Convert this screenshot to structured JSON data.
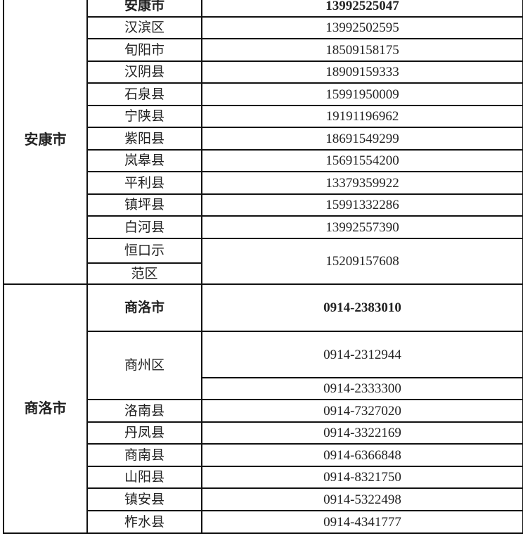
{
  "table": {
    "regions": [
      {
        "name": "安康市",
        "rows": [
          {
            "district": "安康市",
            "phone": "13992525047",
            "bold": true
          },
          {
            "district": "汉滨区",
            "phone": "13992502595"
          },
          {
            "district": "旬阳市",
            "phone": "18509158175"
          },
          {
            "district": "汉阴县",
            "phone": "18909159333"
          },
          {
            "district": "石泉县",
            "phone": "15991950009"
          },
          {
            "district": "宁陕县",
            "phone": "19191196962"
          },
          {
            "district": "紫阳县",
            "phone": "18691549299"
          },
          {
            "district": "岚皋县",
            "phone": "15691554200"
          },
          {
            "district": "平利县",
            "phone": "13379359922"
          },
          {
            "district": "镇坪县",
            "phone": "15991332286"
          },
          {
            "district": "白河县",
            "phone": "13992557390"
          },
          {
            "district": "恒口示",
            "phone": "15209157608",
            "phone_rowspan": 2
          },
          {
            "district": "范区"
          }
        ]
      },
      {
        "name": "商洛市",
        "rows": [
          {
            "district": "商洛市",
            "phone": "0914-2383010",
            "bold": true
          },
          {
            "district": "商州区",
            "district_rowspan": 2,
            "phone": "0914-2312944"
          },
          {
            "phone": "0914-2333300"
          },
          {
            "district": "洛南县",
            "phone": "0914-7327020"
          },
          {
            "district": "丹凤县",
            "phone": "0914-3322169"
          },
          {
            "district": "商南县",
            "phone": "0914-6366848"
          },
          {
            "district": "山阳县",
            "phone": "0914-8321750"
          },
          {
            "district": "镇安县",
            "phone": "0914-5322498"
          },
          {
            "district": "柞水县",
            "phone": "0914-4341777"
          }
        ]
      }
    ]
  }
}
